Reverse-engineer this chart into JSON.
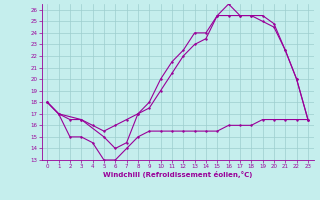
{
  "xlabel": "Windchill (Refroidissement éolien,°C)",
  "xlim": [
    -0.5,
    23.5
  ],
  "ylim": [
    13,
    26.5
  ],
  "xticks": [
    0,
    1,
    2,
    3,
    4,
    5,
    6,
    7,
    8,
    9,
    10,
    11,
    12,
    13,
    14,
    15,
    16,
    17,
    18,
    19,
    20,
    21,
    22,
    23
  ],
  "yticks": [
    13,
    14,
    15,
    16,
    17,
    18,
    19,
    20,
    21,
    22,
    23,
    24,
    25,
    26
  ],
  "background_color": "#c5eeed",
  "grid_color": "#9ecece",
  "line_color": "#990099",
  "line1_x": [
    0,
    1,
    2,
    3,
    4,
    5,
    6,
    7,
    8,
    9,
    10,
    11,
    12,
    13,
    14,
    15,
    16,
    17,
    18,
    19,
    20,
    21,
    22,
    23
  ],
  "line1_y": [
    18,
    17,
    16.5,
    16.5,
    16,
    15.5,
    16,
    16.5,
    17,
    17.5,
    19,
    20.5,
    22,
    23,
    23.5,
    25.5,
    25.5,
    25.5,
    25.5,
    25,
    24.5,
    22.5,
    20,
    16.5
  ],
  "line2_x": [
    0,
    1,
    3,
    5,
    6,
    7,
    8,
    9,
    10,
    11,
    12,
    13,
    14,
    15,
    16,
    17,
    18,
    19,
    20,
    21,
    22,
    23
  ],
  "line2_y": [
    18,
    17,
    16.5,
    15,
    14,
    14.5,
    17,
    18,
    20,
    21.5,
    22.5,
    24,
    24,
    25.5,
    26.5,
    25.5,
    25.5,
    25.5,
    24.8,
    22.5,
    20,
    16.5
  ],
  "line3_x": [
    0,
    1,
    2,
    3,
    4,
    5,
    6,
    7,
    8,
    9,
    10,
    11,
    12,
    13,
    14,
    15,
    16,
    17,
    18,
    19,
    20,
    21,
    22,
    23
  ],
  "line3_y": [
    18,
    17,
    15,
    15,
    14.5,
    13,
    13,
    14,
    15,
    15.5,
    15.5,
    15.5,
    15.5,
    15.5,
    15.5,
    15.5,
    16,
    16,
    16,
    16.5,
    16.5,
    16.5,
    16.5,
    16.5
  ]
}
